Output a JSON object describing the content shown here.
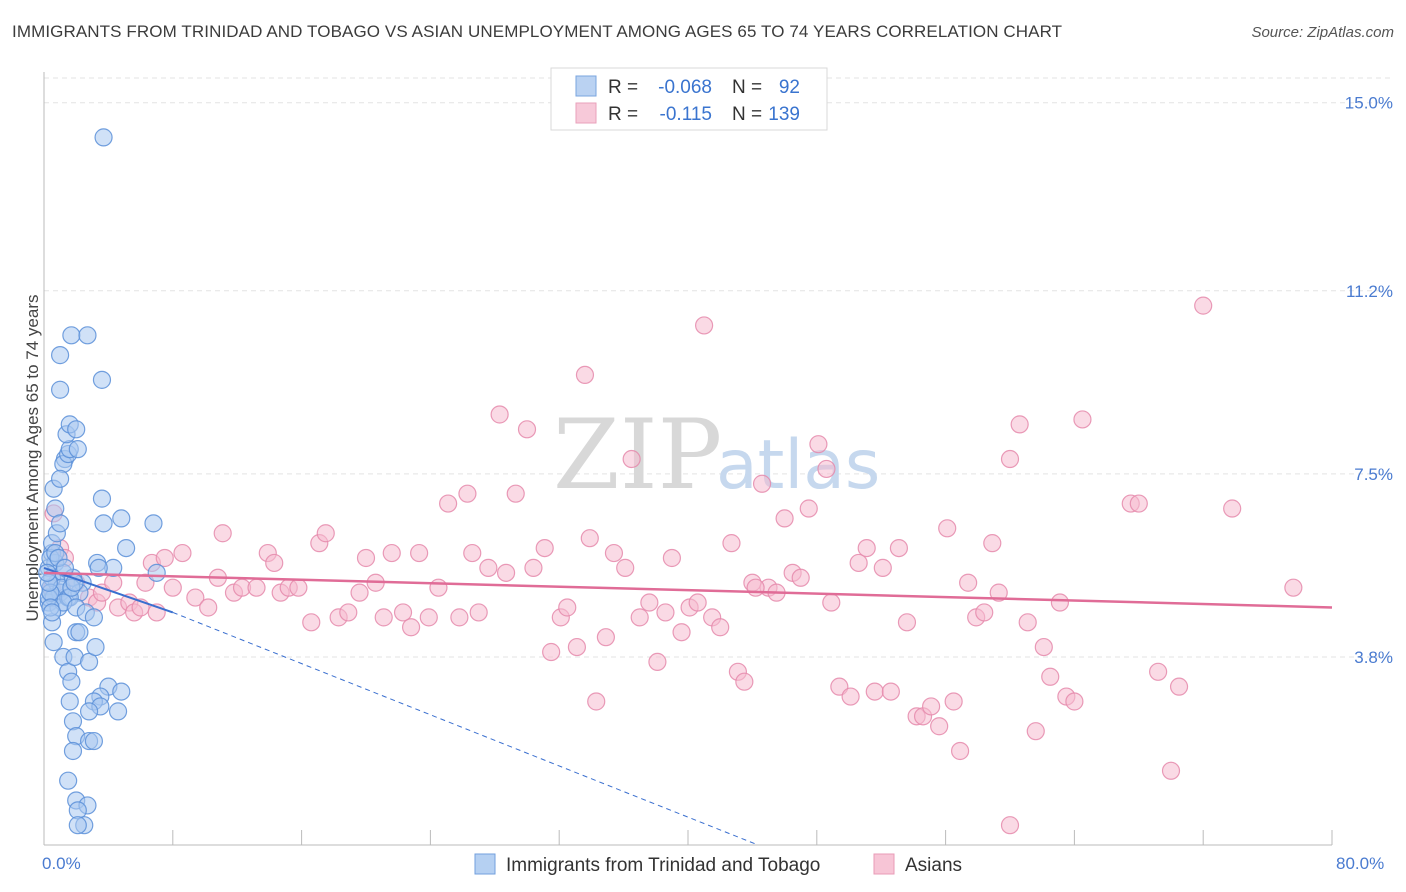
{
  "title": "IMMIGRANTS FROM TRINIDAD AND TOBAGO VS ASIAN UNEMPLOYMENT AMONG AGES 65 TO 74 YEARS CORRELATION CHART",
  "source": "Source: ZipAtlas.com",
  "watermark": {
    "zip": "ZIP",
    "atlas": "atlas"
  },
  "colors": {
    "blue_fill": "#a9c8f0",
    "blue_stroke": "#5a8fd8",
    "blue_line": "#3a6fcf",
    "pink_fill": "#f6bcd0",
    "pink_stroke": "#e58aab",
    "pink_line": "#e06c97",
    "tick": "#4a7bd0",
    "grid": "#e3e3e3"
  },
  "legend": {
    "rows": [
      {
        "r_label": "R =",
        "r_value": "-0.068",
        "n_label": "N =",
        "n_value": "92"
      },
      {
        "r_label": "R =",
        "r_value": "-0.115",
        "n_label": "N =",
        "n_value": "139"
      }
    ]
  },
  "chart_data": {
    "type": "scatter",
    "xlabel": "",
    "ylabel": "Unemployment Among Ages 65 to 74 years",
    "xlim": [
      0,
      80
    ],
    "ylim": [
      0,
      15.5
    ],
    "x_tick_labels": {
      "min": "0.0%",
      "max": "80.0%"
    },
    "y_ticks": [
      {
        "value": 3.8,
        "label": "3.8%"
      },
      {
        "value": 7.5,
        "label": "7.5%"
      },
      {
        "value": 11.2,
        "label": "11.2%"
      },
      {
        "value": 15.0,
        "label": "15.0%"
      }
    ],
    "grid": true,
    "series": [
      {
        "name": "Immigrants from Trinidad and Tobago",
        "trend": {
          "x0": 0,
          "y0": 5.6,
          "x1": 8,
          "y1": 4.7,
          "dashed_to_x": 80,
          "dashed_to_y": -4.5
        },
        "points": [
          [
            0.3,
            5.6
          ],
          [
            0.5,
            5.9
          ],
          [
            0.4,
            5.2
          ],
          [
            0.6,
            5.0
          ],
          [
            0.3,
            4.9
          ],
          [
            0.8,
            5.3
          ],
          [
            0.5,
            5.4
          ],
          [
            1.0,
            5.1
          ],
          [
            0.7,
            5.7
          ],
          [
            1.2,
            5.5
          ],
          [
            0.4,
            5.8
          ],
          [
            0.6,
            5.0
          ],
          [
            0.9,
            4.8
          ],
          [
            1.1,
            5.2
          ],
          [
            1.5,
            5.0
          ],
          [
            0.5,
            6.1
          ],
          [
            0.8,
            6.3
          ],
          [
            0.7,
            6.8
          ],
          [
            1.0,
            6.5
          ],
          [
            0.6,
            7.2
          ],
          [
            1.3,
            7.8
          ],
          [
            1.2,
            7.7
          ],
          [
            1.5,
            7.9
          ],
          [
            1.6,
            8.0
          ],
          [
            1.4,
            8.3
          ],
          [
            1.6,
            8.5
          ],
          [
            2.0,
            8.4
          ],
          [
            2.1,
            8.0
          ],
          [
            1.0,
            7.4
          ],
          [
            1.0,
            9.2
          ],
          [
            1.0,
            9.9
          ],
          [
            1.7,
            10.3
          ],
          [
            2.7,
            10.3
          ],
          [
            3.6,
            9.4
          ],
          [
            3.7,
            14.3
          ],
          [
            3.6,
            7.0
          ],
          [
            3.7,
            6.5
          ],
          [
            4.8,
            6.6
          ],
          [
            5.1,
            6.0
          ],
          [
            6.8,
            6.5
          ],
          [
            7.0,
            5.5
          ],
          [
            4.3,
            5.6
          ],
          [
            3.3,
            5.7
          ],
          [
            3.4,
            5.6
          ],
          [
            2.4,
            5.3
          ],
          [
            1.8,
            5.4
          ],
          [
            2.2,
            5.1
          ],
          [
            1.6,
            5.0
          ],
          [
            1.2,
            4.9
          ],
          [
            2.0,
            4.8
          ],
          [
            2.6,
            4.7
          ],
          [
            3.1,
            4.6
          ],
          [
            0.5,
            4.5
          ],
          [
            0.6,
            4.1
          ],
          [
            1.2,
            3.8
          ],
          [
            1.5,
            3.5
          ],
          [
            1.7,
            3.3
          ],
          [
            1.9,
            3.8
          ],
          [
            2.8,
            3.7
          ],
          [
            3.2,
            4.0
          ],
          [
            2.0,
            4.3
          ],
          [
            2.2,
            4.3
          ],
          [
            4.0,
            3.2
          ],
          [
            4.8,
            3.1
          ],
          [
            3.5,
            3.0
          ],
          [
            1.6,
            2.9
          ],
          [
            3.1,
            2.9
          ],
          [
            3.5,
            2.8
          ],
          [
            4.6,
            2.7
          ],
          [
            2.8,
            2.7
          ],
          [
            1.8,
            2.5
          ],
          [
            2.0,
            2.2
          ],
          [
            2.8,
            2.1
          ],
          [
            3.1,
            2.1
          ],
          [
            1.8,
            1.9
          ],
          [
            1.5,
            1.3
          ],
          [
            2.0,
            0.9
          ],
          [
            2.7,
            0.8
          ],
          [
            2.1,
            0.7
          ],
          [
            2.5,
            0.4
          ],
          [
            2.1,
            0.4
          ],
          [
            0.3,
            5.0
          ],
          [
            0.4,
            5.1
          ],
          [
            0.3,
            5.3
          ],
          [
            0.2,
            5.5
          ],
          [
            0.4,
            4.8
          ],
          [
            0.5,
            4.7
          ],
          [
            0.7,
            5.9
          ],
          [
            0.9,
            5.8
          ],
          [
            1.3,
            5.6
          ],
          [
            1.7,
            5.2
          ],
          [
            1.9,
            5.3
          ]
        ]
      },
      {
        "name": "Asians",
        "trend": {
          "x0": 0,
          "y0": 5.5,
          "x1": 80,
          "y1": 4.8
        },
        "points": [
          [
            0.5,
            5.2
          ],
          [
            1.0,
            6.0
          ],
          [
            1.3,
            5.8
          ],
          [
            0.6,
            6.7
          ],
          [
            2.0,
            5.3
          ],
          [
            2.8,
            5.0
          ],
          [
            3.3,
            4.9
          ],
          [
            3.6,
            5.1
          ],
          [
            4.3,
            5.3
          ],
          [
            4.6,
            4.8
          ],
          [
            5.3,
            4.9
          ],
          [
            5.6,
            4.7
          ],
          [
            6.0,
            4.8
          ],
          [
            6.3,
            5.3
          ],
          [
            6.7,
            5.7
          ],
          [
            7.0,
            4.7
          ],
          [
            7.5,
            5.8
          ],
          [
            8.0,
            5.2
          ],
          [
            8.6,
            5.9
          ],
          [
            9.4,
            5.0
          ],
          [
            10.2,
            4.8
          ],
          [
            10.8,
            5.4
          ],
          [
            11.1,
            6.3
          ],
          [
            11.8,
            5.1
          ],
          [
            12.3,
            5.2
          ],
          [
            13.2,
            5.2
          ],
          [
            13.9,
            5.9
          ],
          [
            14.3,
            5.7
          ],
          [
            14.7,
            5.1
          ],
          [
            15.2,
            5.2
          ],
          [
            15.8,
            5.2
          ],
          [
            16.6,
            4.5
          ],
          [
            17.1,
            6.1
          ],
          [
            17.5,
            6.3
          ],
          [
            18.3,
            4.6
          ],
          [
            18.9,
            4.7
          ],
          [
            19.6,
            5.1
          ],
          [
            20.0,
            5.8
          ],
          [
            20.6,
            5.3
          ],
          [
            21.1,
            4.6
          ],
          [
            21.6,
            5.9
          ],
          [
            22.3,
            4.7
          ],
          [
            22.8,
            4.4
          ],
          [
            23.3,
            5.9
          ],
          [
            23.9,
            4.6
          ],
          [
            24.5,
            5.2
          ],
          [
            25.1,
            6.9
          ],
          [
            25.8,
            4.6
          ],
          [
            26.3,
            7.1
          ],
          [
            26.6,
            5.9
          ],
          [
            27.0,
            4.7
          ],
          [
            27.6,
            5.6
          ],
          [
            28.3,
            8.7
          ],
          [
            28.7,
            5.5
          ],
          [
            29.3,
            7.1
          ],
          [
            30.0,
            8.4
          ],
          [
            30.4,
            5.6
          ],
          [
            31.1,
            6.0
          ],
          [
            31.5,
            3.9
          ],
          [
            32.1,
            4.6
          ],
          [
            32.5,
            4.8
          ],
          [
            33.1,
            4.0
          ],
          [
            33.6,
            9.5
          ],
          [
            33.9,
            6.2
          ],
          [
            34.3,
            2.9
          ],
          [
            34.9,
            4.2
          ],
          [
            35.4,
            5.9
          ],
          [
            36.1,
            5.6
          ],
          [
            36.5,
            7.8
          ],
          [
            37.0,
            4.6
          ],
          [
            37.6,
            4.9
          ],
          [
            38.1,
            3.7
          ],
          [
            38.6,
            4.7
          ],
          [
            39.0,
            5.8
          ],
          [
            39.6,
            4.3
          ],
          [
            40.1,
            4.8
          ],
          [
            40.6,
            4.9
          ],
          [
            41.0,
            10.5
          ],
          [
            41.5,
            4.6
          ],
          [
            42.0,
            4.4
          ],
          [
            42.7,
            6.1
          ],
          [
            43.1,
            3.5
          ],
          [
            43.5,
            3.3
          ],
          [
            44.0,
            5.3
          ],
          [
            44.6,
            7.3
          ],
          [
            45.0,
            5.2
          ],
          [
            45.5,
            5.1
          ],
          [
            46.0,
            6.6
          ],
          [
            46.5,
            5.5
          ],
          [
            47.0,
            5.4
          ],
          [
            47.5,
            6.8
          ],
          [
            48.1,
            8.1
          ],
          [
            48.6,
            7.6
          ],
          [
            48.9,
            4.9
          ],
          [
            49.4,
            3.2
          ],
          [
            50.1,
            3.0
          ],
          [
            50.6,
            5.7
          ],
          [
            51.1,
            6.0
          ],
          [
            51.6,
            3.1
          ],
          [
            52.1,
            5.6
          ],
          [
            52.6,
            3.1
          ],
          [
            53.1,
            6.0
          ],
          [
            53.6,
            4.5
          ],
          [
            54.2,
            2.6
          ],
          [
            54.6,
            2.6
          ],
          [
            55.1,
            2.8
          ],
          [
            55.6,
            2.4
          ],
          [
            56.1,
            6.4
          ],
          [
            56.5,
            2.9
          ],
          [
            56.9,
            1.9
          ],
          [
            57.4,
            5.3
          ],
          [
            57.9,
            4.6
          ],
          [
            58.4,
            4.7
          ],
          [
            58.9,
            6.1
          ],
          [
            59.3,
            5.1
          ],
          [
            60.0,
            7.8
          ],
          [
            60.6,
            8.5
          ],
          [
            61.1,
            4.5
          ],
          [
            61.6,
            2.3
          ],
          [
            62.1,
            4.0
          ],
          [
            62.5,
            3.4
          ],
          [
            63.1,
            4.9
          ],
          [
            63.5,
            3.0
          ],
          [
            64.0,
            2.9
          ],
          [
            64.5,
            8.6
          ],
          [
            67.5,
            6.9
          ],
          [
            68.0,
            6.9
          ],
          [
            69.2,
            3.5
          ],
          [
            70.0,
            1.5
          ],
          [
            70.5,
            3.2
          ],
          [
            72.0,
            10.9
          ],
          [
            73.8,
            6.8
          ],
          [
            77.6,
            5.2
          ],
          [
            60.0,
            0.4
          ],
          [
            44.2,
            5.2
          ]
        ]
      }
    ]
  },
  "bottom_legend": [
    {
      "label": "Immigrants from Trinidad and Tobago"
    },
    {
      "label": "Asians"
    }
  ]
}
